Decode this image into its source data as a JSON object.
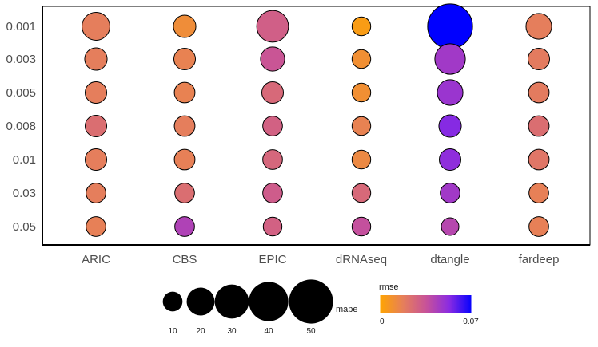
{
  "chart_data": {
    "type": "scatter",
    "title": "",
    "xlabel": "",
    "ylabel": "",
    "categories_x": [
      "ARIC",
      "CBS",
      "EPIC",
      "dRNAseq",
      "dtangle",
      "fardeep"
    ],
    "categories_y": [
      "0.001",
      "0.003",
      "0.005",
      "0.008",
      "0.01",
      "0.03",
      "0.05"
    ],
    "size_variable": "mape",
    "color_variable": "rmse",
    "points": [
      {
        "x": "ARIC",
        "y": "0.001",
        "mape": 20,
        "rmse": 0.018
      },
      {
        "x": "ARIC",
        "y": "0.003",
        "mape": 13,
        "rmse": 0.018
      },
      {
        "x": "ARIC",
        "y": "0.005",
        "mape": 12,
        "rmse": 0.018
      },
      {
        "x": "ARIC",
        "y": "0.008",
        "mape": 12,
        "rmse": 0.024
      },
      {
        "x": "ARIC",
        "y": "0.01",
        "mape": 12,
        "rmse": 0.018
      },
      {
        "x": "ARIC",
        "y": "0.03",
        "mape": 10,
        "rmse": 0.018
      },
      {
        "x": "ARIC",
        "y": "0.05",
        "mape": 10,
        "rmse": 0.017
      },
      {
        "x": "CBS",
        "y": "0.001",
        "mape": 13,
        "rmse": 0.011
      },
      {
        "x": "CBS",
        "y": "0.003",
        "mape": 12,
        "rmse": 0.016
      },
      {
        "x": "CBS",
        "y": "0.005",
        "mape": 11,
        "rmse": 0.016
      },
      {
        "x": "CBS",
        "y": "0.008",
        "mape": 11,
        "rmse": 0.018
      },
      {
        "x": "CBS",
        "y": "0.01",
        "mape": 11,
        "rmse": 0.017
      },
      {
        "x": "CBS",
        "y": "0.03",
        "mape": 10,
        "rmse": 0.024
      },
      {
        "x": "CBS",
        "y": "0.05",
        "mape": 10,
        "rmse": 0.042
      },
      {
        "x": "EPIC",
        "y": "0.001",
        "mape": 26,
        "rmse": 0.03
      },
      {
        "x": "EPIC",
        "y": "0.003",
        "mape": 15,
        "rmse": 0.034
      },
      {
        "x": "EPIC",
        "y": "0.005",
        "mape": 12,
        "rmse": 0.026
      },
      {
        "x": "EPIC",
        "y": "0.008",
        "mape": 10,
        "rmse": 0.029
      },
      {
        "x": "EPIC",
        "y": "0.01",
        "mape": 10,
        "rmse": 0.027
      },
      {
        "x": "EPIC",
        "y": "0.03",
        "mape": 10,
        "rmse": 0.031
      },
      {
        "x": "EPIC",
        "y": "0.05",
        "mape": 9,
        "rmse": 0.029
      },
      {
        "x": "dRNAseq",
        "y": "0.001",
        "mape": 9,
        "rmse": 0.004
      },
      {
        "x": "dRNAseq",
        "y": "0.003",
        "mape": 9,
        "rmse": 0.01
      },
      {
        "x": "dRNAseq",
        "y": "0.005",
        "mape": 9,
        "rmse": 0.01
      },
      {
        "x": "dRNAseq",
        "y": "0.008",
        "mape": 9,
        "rmse": 0.016
      },
      {
        "x": "dRNAseq",
        "y": "0.01",
        "mape": 9,
        "rmse": 0.013
      },
      {
        "x": "dRNAseq",
        "y": "0.03",
        "mape": 9,
        "rmse": 0.026
      },
      {
        "x": "dRNAseq",
        "y": "0.05",
        "mape": 9,
        "rmse": 0.036
      },
      {
        "x": "dtangle",
        "y": "0.001",
        "mape": 52,
        "rmse": 0.07
      },
      {
        "x": "dtangle",
        "y": "0.003",
        "mape": 24,
        "rmse": 0.046
      },
      {
        "x": "dtangle",
        "y": "0.005",
        "mape": 17,
        "rmse": 0.048
      },
      {
        "x": "dtangle",
        "y": "0.008",
        "mape": 13,
        "rmse": 0.053
      },
      {
        "x": "dtangle",
        "y": "0.01",
        "mape": 12,
        "rmse": 0.051
      },
      {
        "x": "dtangle",
        "y": "0.03",
        "mape": 10,
        "rmse": 0.046
      },
      {
        "x": "dtangle",
        "y": "0.05",
        "mape": 8,
        "rmse": 0.04
      },
      {
        "x": "fardeep",
        "y": "0.001",
        "mape": 17,
        "rmse": 0.018
      },
      {
        "x": "fardeep",
        "y": "0.003",
        "mape": 12,
        "rmse": 0.019
      },
      {
        "x": "fardeep",
        "y": "0.005",
        "mape": 11,
        "rmse": 0.019
      },
      {
        "x": "fardeep",
        "y": "0.008",
        "mape": 11,
        "rmse": 0.024
      },
      {
        "x": "fardeep",
        "y": "0.01",
        "mape": 11,
        "rmse": 0.021
      },
      {
        "x": "fardeep",
        "y": "0.03",
        "mape": 10,
        "rmse": 0.017
      },
      {
        "x": "fardeep",
        "y": "0.05",
        "mape": 10,
        "rmse": 0.017
      }
    ],
    "size_legend": {
      "title": "mape",
      "values": [
        10,
        20,
        30,
        40,
        50
      ],
      "labels": [
        "10",
        "20",
        "30",
        "40",
        "50"
      ]
    },
    "color_legend": {
      "title": "rmse",
      "range": [
        0,
        0.07
      ],
      "tick_labels": [
        "0",
        "0.07"
      ],
      "colors": [
        "#FFA500",
        "#E67F5A",
        "#C75299",
        "#8A2BE2",
        "#0000FF"
      ]
    },
    "grid": false,
    "legend_position": "bottom"
  }
}
